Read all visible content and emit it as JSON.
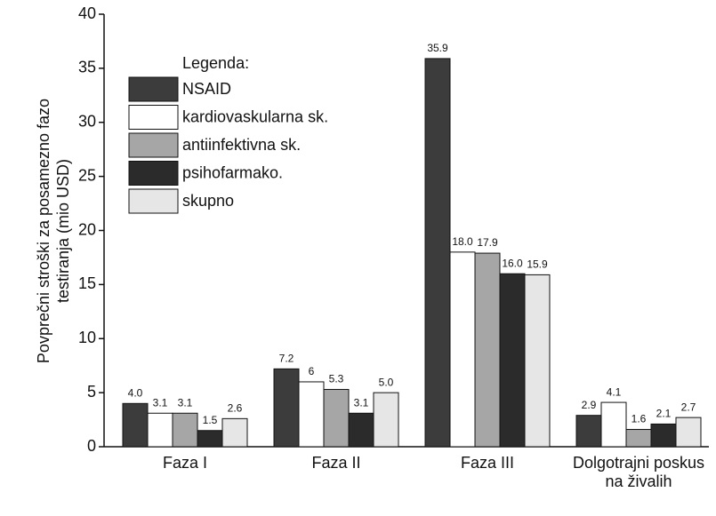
{
  "chart_data": {
    "type": "bar",
    "ylabel": "Povprečni stroški za posamezno fazo testiranja (mio USD)",
    "legend_title": "Legenda:",
    "categories": [
      "Faza I",
      "Faza II",
      "Faza III",
      "Dolgotrajni poskus na živalih"
    ],
    "series": [
      {
        "name": "NSAID",
        "color": "#3c3c3c",
        "values": [
          4.0,
          7.2,
          35.9,
          2.9
        ],
        "value_labels": [
          "4.0",
          "7.2",
          "35.9",
          "2.9"
        ]
      },
      {
        "name": "kardiovaskularna sk.",
        "color": "#ffffff",
        "values": [
          3.1,
          6,
          18.0,
          4.1
        ],
        "value_labels": [
          "3.1",
          "6",
          "18.0",
          "4.1"
        ]
      },
      {
        "name": "antiinfektivna sk.",
        "color": "#a6a6a6",
        "values": [
          3.1,
          5.3,
          17.9,
          1.6
        ],
        "value_labels": [
          "3.1",
          "5.3",
          "17.9",
          "1.6"
        ]
      },
      {
        "name": "psihofarmako.",
        "color": "#2b2b2b",
        "values": [
          1.5,
          3.1,
          16.0,
          2.1
        ],
        "value_labels": [
          "1.5",
          "3.1",
          "16.0",
          "2.1"
        ]
      },
      {
        "name": "skupno",
        "color": "#e6e6e6",
        "values": [
          2.6,
          5.0,
          15.9,
          2.7
        ],
        "value_labels": [
          "2.6",
          "5.0",
          "15.9",
          "2.7"
        ]
      }
    ],
    "ylim": [
      0,
      40
    ],
    "yticks": [
      0,
      5,
      10,
      15,
      20,
      25,
      30,
      35,
      40
    ],
    "legend": "upper left"
  }
}
